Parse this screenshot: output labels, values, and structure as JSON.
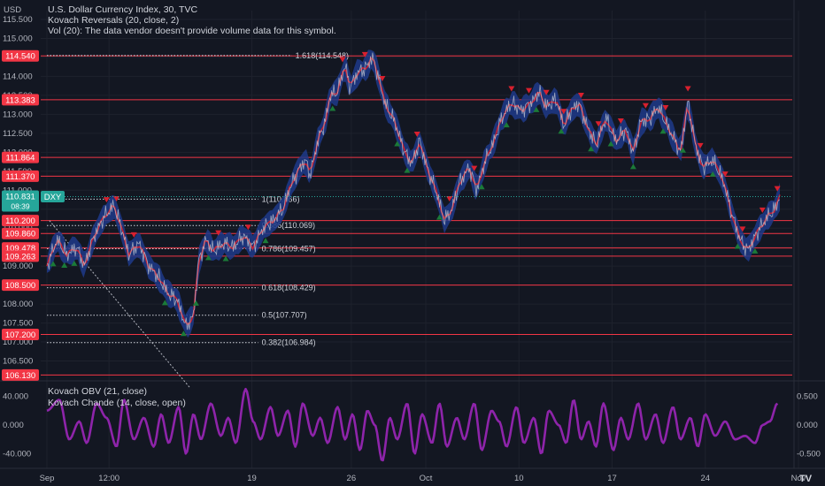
{
  "header": {
    "title": "U.S. Dollar Currency Index, 30, TVC",
    "indicator_1": "Kovach Reversals (20, close, 2)",
    "indicator_2": "Vol (20): The data vendor doesn't provide volume data for this symbol."
  },
  "y_axis_unit": "USD",
  "tv_logo_text": "TV",
  "colors": {
    "background": "#131722",
    "grid": "#1e222d",
    "hline": "#f23645",
    "label_red": "#f23645",
    "symbol_teal": "#26a69a",
    "band_blue": "#1e3a8a",
    "price_line": "#c8ccd6",
    "signal_red": "#d8202e",
    "signal_green": "#1b7a38",
    "osc_purple": "#8e24aa"
  },
  "chart_data": [
    {
      "type": "line",
      "title": "U.S. Dollar Currency Index, 30, TVC",
      "xlabel": "",
      "ylabel": "USD",
      "ylim": [
        106.0,
        115.5
      ],
      "y_ticks": [
        "115.500",
        "115.000",
        "114.500",
        "114.000",
        "113.500",
        "113.000",
        "112.500",
        "112.000",
        "111.500",
        "111.000",
        "110.500",
        "110.000",
        "109.500",
        "109.000",
        "108.500",
        "108.000",
        "107.500",
        "107.000",
        "106.500"
      ],
      "x_tick_labels": [
        {
          "label": "Sep",
          "x": 0
        },
        {
          "label": "12:00",
          "x": 0.5
        },
        {
          "label": "19",
          "x": 1.65
        },
        {
          "label": "26",
          "x": 2.45
        },
        {
          "label": "Oct",
          "x": 3.05
        },
        {
          "label": "10",
          "x": 3.8
        },
        {
          "label": "17",
          "x": 4.55
        },
        {
          "label": "24",
          "x": 5.3
        },
        {
          "label": "Nov",
          "x": 6.05
        }
      ],
      "x_range": [
        -0.05,
        6.0
      ],
      "current_price": {
        "label": "DXY",
        "value": "110.831",
        "countdown": "08:39"
      },
      "horizontal_levels": [
        "114.540",
        "113.383",
        "111.864",
        "111.370",
        "110.200",
        "109.860",
        "109.478",
        "109.263",
        "108.500",
        "107.200",
        "106.130"
      ],
      "fibonacci": [
        {
          "ratio": "1.618",
          "label": "1.618(114.548)",
          "value": 114.548
        },
        {
          "ratio": "1",
          "label": "1(110.766)",
          "value": 110.766
        },
        {
          "ratio": "0.886",
          "label": "0.886(110.069)",
          "value": 110.069
        },
        {
          "ratio": "0.786",
          "label": "0.786(109.457)",
          "value": 109.457
        },
        {
          "ratio": "0.618",
          "label": "0.618(108.429)",
          "value": 108.429
        },
        {
          "ratio": "0.5",
          "label": "0.5(107.707)",
          "value": 107.707
        },
        {
          "ratio": "0.382",
          "label": "0.382(106.984)",
          "value": 106.984
        }
      ],
      "price_path": [
        [
          0.0,
          109.0
        ],
        [
          0.08,
          109.7
        ],
        [
          0.16,
          109.3
        ],
        [
          0.24,
          109.5
        ],
        [
          0.3,
          109.0
        ],
        [
          0.38,
          109.8
        ],
        [
          0.46,
          110.3
        ],
        [
          0.54,
          110.6
        ],
        [
          0.6,
          110.0
        ],
        [
          0.66,
          109.3
        ],
        [
          0.74,
          109.6
        ],
        [
          0.82,
          109.0
        ],
        [
          0.9,
          108.7
        ],
        [
          0.97,
          108.3
        ],
        [
          1.05,
          108.1
        ],
        [
          1.12,
          107.4
        ],
        [
          1.18,
          107.7
        ],
        [
          1.22,
          109.1
        ],
        [
          1.28,
          109.7
        ],
        [
          1.34,
          109.4
        ],
        [
          1.42,
          109.6
        ],
        [
          1.5,
          109.5
        ],
        [
          1.58,
          109.8
        ],
        [
          1.66,
          109.5
        ],
        [
          1.74,
          110.0
        ],
        [
          1.82,
          110.2
        ],
        [
          1.9,
          110.5
        ],
        [
          1.96,
          111.1
        ],
        [
          2.02,
          111.5
        ],
        [
          2.08,
          111.8
        ],
        [
          2.12,
          111.4
        ],
        [
          2.18,
          112.3
        ],
        [
          2.24,
          112.8
        ],
        [
          2.28,
          113.5
        ],
        [
          2.34,
          113.6
        ],
        [
          2.4,
          114.3
        ],
        [
          2.44,
          113.7
        ],
        [
          2.5,
          114.1
        ],
        [
          2.56,
          114.2
        ],
        [
          2.62,
          114.5
        ],
        [
          2.66,
          114.1
        ],
        [
          2.72,
          113.3
        ],
        [
          2.8,
          112.8
        ],
        [
          2.88,
          112.0
        ],
        [
          2.94,
          111.7
        ],
        [
          3.0,
          112.3
        ],
        [
          3.06,
          111.6
        ],
        [
          3.14,
          110.9
        ],
        [
          3.2,
          110.2
        ],
        [
          3.26,
          110.5
        ],
        [
          3.32,
          111.2
        ],
        [
          3.4,
          111.6
        ],
        [
          3.46,
          111.0
        ],
        [
          3.52,
          111.7
        ],
        [
          3.6,
          112.3
        ],
        [
          3.66,
          112.9
        ],
        [
          3.74,
          113.3
        ],
        [
          3.82,
          113.1
        ],
        [
          3.9,
          113.3
        ],
        [
          3.96,
          113.6
        ],
        [
          4.02,
          113.2
        ],
        [
          4.1,
          113.4
        ],
        [
          4.16,
          112.7
        ],
        [
          4.22,
          113.1
        ],
        [
          4.28,
          113.3
        ],
        [
          4.36,
          112.6
        ],
        [
          4.42,
          112.2
        ],
        [
          4.5,
          112.9
        ],
        [
          4.58,
          112.3
        ],
        [
          4.66,
          112.6
        ],
        [
          4.72,
          112.0
        ],
        [
          4.78,
          112.8
        ],
        [
          4.86,
          112.9
        ],
        [
          4.92,
          113.2
        ],
        [
          4.98,
          112.8
        ],
        [
          5.04,
          112.4
        ],
        [
          5.1,
          112.0
        ],
        [
          5.16,
          113.3
        ],
        [
          5.22,
          112.2
        ],
        [
          5.28,
          111.6
        ],
        [
          5.36,
          111.8
        ],
        [
          5.44,
          111.3
        ],
        [
          5.52,
          110.3
        ],
        [
          5.58,
          109.7
        ],
        [
          5.64,
          109.4
        ],
        [
          5.72,
          109.9
        ],
        [
          5.8,
          110.3
        ],
        [
          5.86,
          110.5
        ],
        [
          5.9,
          110.83
        ]
      ],
      "sell_markers": [
        0.48,
        0.56,
        0.7,
        1.38,
        1.62,
        2.38,
        2.56,
        2.7,
        2.98,
        3.24,
        3.44,
        3.74,
        3.88,
        4.02,
        4.16,
        4.3,
        4.44,
        4.62,
        4.82,
        4.98,
        5.16,
        5.26,
        5.46,
        5.6,
        5.76,
        5.88
      ],
      "buy_markers": [
        0.05,
        0.14,
        0.22,
        0.95,
        1.1,
        1.2,
        1.3,
        1.44,
        1.76,
        2.3,
        2.82,
        2.9,
        3.16,
        3.5,
        3.7,
        3.94,
        4.14,
        4.38,
        4.54,
        4.72,
        4.96,
        5.12,
        5.36,
        5.56,
        5.7
      ]
    },
    {
      "type": "line",
      "title": "Kovach OBV (21, close)",
      "ylim": [
        -60,
        60
      ],
      "left_ticks": [
        "40.000",
        "0.000",
        "-40.000"
      ],
      "right_ticks": [
        "0.500",
        "0.000",
        "-0.500"
      ],
      "series": [
        {
          "name": "Kovach Chande (14, close, open)",
          "values": [
            [
              0.0,
              20
            ],
            [
              0.1,
              35
            ],
            [
              0.18,
              -20
            ],
            [
              0.26,
              5
            ],
            [
              0.32,
              -25
            ],
            [
              0.4,
              30
            ],
            [
              0.48,
              10
            ],
            [
              0.56,
              -30
            ],
            [
              0.62,
              35
            ],
            [
              0.7,
              -20
            ],
            [
              0.78,
              10
            ],
            [
              0.86,
              -30
            ],
            [
              0.92,
              15
            ],
            [
              0.98,
              -25
            ],
            [
              1.06,
              25
            ],
            [
              1.12,
              -40
            ],
            [
              1.18,
              15
            ],
            [
              1.24,
              -20
            ],
            [
              1.32,
              30
            ],
            [
              1.4,
              -15
            ],
            [
              1.46,
              10
            ],
            [
              1.52,
              -25
            ],
            [
              1.6,
              50
            ],
            [
              1.66,
              5
            ],
            [
              1.72,
              -20
            ],
            [
              1.8,
              25
            ],
            [
              1.86,
              -15
            ],
            [
              1.94,
              20
            ],
            [
              2.0,
              -30
            ],
            [
              2.06,
              30
            ],
            [
              2.14,
              -15
            ],
            [
              2.2,
              10
            ],
            [
              2.26,
              -25
            ],
            [
              2.34,
              25
            ],
            [
              2.4,
              -20
            ],
            [
              2.46,
              15
            ],
            [
              2.52,
              -35
            ],
            [
              2.58,
              20
            ],
            [
              2.64,
              0
            ],
            [
              2.7,
              -50
            ],
            [
              2.76,
              10
            ],
            [
              2.82,
              -20
            ],
            [
              2.9,
              30
            ],
            [
              2.96,
              -40
            ],
            [
              3.02,
              15
            ],
            [
              3.1,
              -25
            ],
            [
              3.16,
              30
            ],
            [
              3.22,
              -30
            ],
            [
              3.3,
              10
            ],
            [
              3.36,
              -20
            ],
            [
              3.44,
              30
            ],
            [
              3.5,
              -35
            ],
            [
              3.58,
              20
            ],
            [
              3.64,
              5
            ],
            [
              3.7,
              -30
            ],
            [
              3.78,
              25
            ],
            [
              3.84,
              -25
            ],
            [
              3.92,
              10
            ],
            [
              3.98,
              -40
            ],
            [
              4.04,
              20
            ],
            [
              4.12,
              0
            ],
            [
              4.18,
              -25
            ],
            [
              4.24,
              35
            ],
            [
              4.3,
              -20
            ],
            [
              4.36,
              5
            ],
            [
              4.42,
              -30
            ],
            [
              4.48,
              30
            ],
            [
              4.56,
              -35
            ],
            [
              4.62,
              10
            ],
            [
              4.68,
              -20
            ],
            [
              4.76,
              30
            ],
            [
              4.82,
              -20
            ],
            [
              4.9,
              15
            ],
            [
              4.96,
              -25
            ],
            [
              5.04,
              25
            ],
            [
              5.1,
              -20
            ],
            [
              5.18,
              10
            ],
            [
              5.24,
              -30
            ],
            [
              5.3,
              15
            ],
            [
              5.38,
              -15
            ],
            [
              5.46,
              5
            ],
            [
              5.54,
              -20
            ],
            [
              5.62,
              -15
            ],
            [
              5.7,
              -25
            ],
            [
              5.76,
              0
            ],
            [
              5.82,
              5
            ],
            [
              5.88,
              30
            ]
          ]
        }
      ]
    }
  ]
}
